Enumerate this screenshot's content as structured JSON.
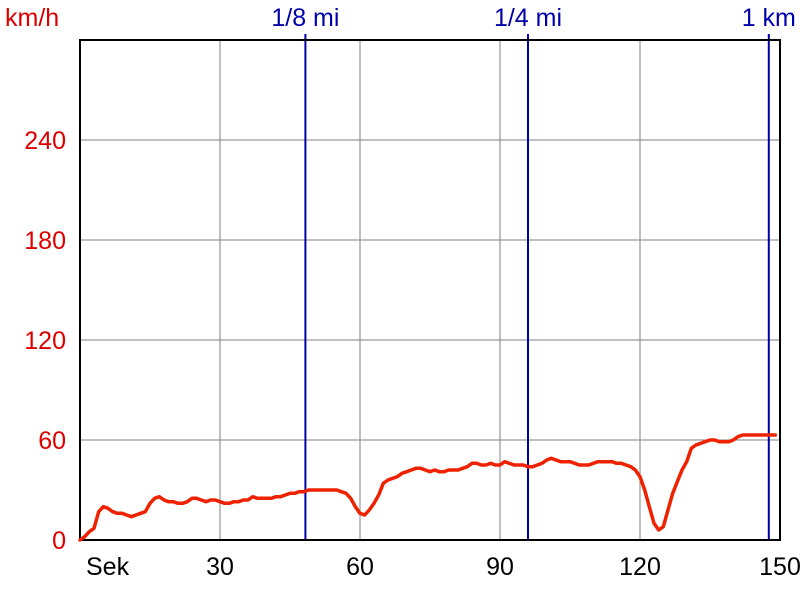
{
  "chart_data": {
    "type": "line",
    "y_unit_label": "km/h",
    "x_unit_label": "Sek",
    "xlim": [
      0,
      150
    ],
    "ylim": [
      0,
      300
    ],
    "x_ticks": [
      30,
      60,
      90,
      120,
      150
    ],
    "y_ticks": [
      0,
      60,
      120,
      180,
      240
    ],
    "grid": true,
    "colors": {
      "line": "#ee2200",
      "y_labels": "#dd0000",
      "markers": "#0000aa",
      "grid": "#808080",
      "axes": "#000000"
    },
    "markers": [
      {
        "label": "1/8 mi",
        "x": 48.3
      },
      {
        "label": "1/4 mi",
        "x": 96.0
      },
      {
        "label": "1 km",
        "x": 147.6
      }
    ],
    "series": [
      {
        "x": [
          0,
          1,
          2,
          3,
          4,
          5,
          6,
          7,
          8,
          9,
          10,
          11,
          12,
          13,
          14,
          15,
          16,
          17,
          18,
          19,
          20,
          21,
          22,
          23,
          24,
          25,
          26,
          27,
          28,
          29,
          30,
          31,
          32,
          33,
          34,
          35,
          36,
          37,
          38,
          39,
          40,
          41,
          42,
          43,
          44,
          45,
          46,
          47,
          48,
          49,
          50,
          51,
          52,
          53,
          54,
          55,
          56,
          57,
          58,
          59,
          60,
          61,
          62,
          63,
          64,
          65,
          66,
          67,
          68,
          69,
          70,
          71,
          72,
          73,
          74,
          75,
          76,
          77,
          78,
          79,
          80,
          81,
          82,
          83,
          84,
          85,
          86,
          87,
          88,
          89,
          90,
          91,
          92,
          93,
          94,
          95,
          96,
          97,
          98,
          99,
          100,
          101,
          102,
          103,
          104,
          105,
          106,
          107,
          108,
          109,
          110,
          111,
          112,
          113,
          114,
          115,
          116,
          117,
          118,
          119,
          120,
          121,
          122,
          123,
          124,
          125,
          126,
          127,
          128,
          129,
          130,
          131,
          132,
          133,
          134,
          135,
          136,
          137,
          138,
          139,
          140,
          141,
          142,
          143,
          144,
          145,
          146,
          147,
          148,
          149
        ],
        "values": [
          0,
          2,
          5,
          7,
          17,
          20,
          19,
          17,
          16,
          16,
          15,
          14,
          15,
          16,
          17,
          22,
          25,
          26,
          24,
          23,
          23,
          22,
          22,
          23,
          25,
          25,
          24,
          23,
          24,
          24,
          23,
          22,
          22,
          23,
          23,
          24,
          24,
          26,
          25,
          25,
          25,
          25,
          26,
          26,
          27,
          28,
          28,
          29,
          29,
          30,
          30,
          30,
          30,
          30,
          30,
          30,
          29,
          28,
          25,
          20,
          16,
          15,
          18,
          22,
          27,
          34,
          36,
          37,
          38,
          40,
          41,
          42,
          43,
          43,
          42,
          41,
          42,
          41,
          41,
          42,
          42,
          42,
          43,
          44,
          46,
          46,
          45,
          45,
          46,
          45,
          45,
          47,
          46,
          45,
          45,
          45,
          44,
          44,
          45,
          46,
          48,
          49,
          48,
          47,
          47,
          47,
          46,
          45,
          45,
          45,
          46,
          47,
          47,
          47,
          47,
          46,
          46,
          45,
          44,
          42,
          38,
          30,
          20,
          10,
          6,
          8,
          18,
          28,
          35,
          42,
          47,
          55,
          57,
          58,
          59,
          60,
          60,
          59,
          59,
          59,
          60,
          62,
          63,
          63,
          63,
          63,
          63,
          63,
          63,
          63
        ]
      }
    ]
  }
}
